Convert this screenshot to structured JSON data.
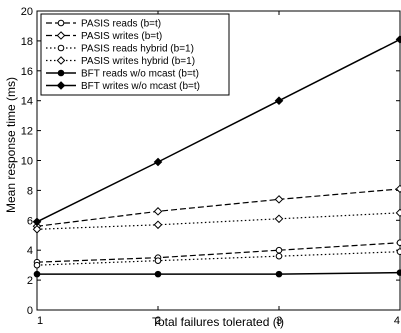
{
  "chart_data": {
    "type": "line",
    "title": "",
    "xlabel": "Total failures tolerated (t)",
    "ylabel": "Mean response time (ms)",
    "xlim": [
      1,
      4
    ],
    "ylim": [
      0,
      20
    ],
    "xticks": [
      "1",
      "2",
      "3",
      "4"
    ],
    "yticks": [
      "0",
      "2",
      "4",
      "6",
      "8",
      "10",
      "12",
      "14",
      "16",
      "18",
      "20"
    ],
    "grid": false,
    "legend_position": "top-left",
    "x": [
      1,
      2,
      3,
      4
    ],
    "series": [
      {
        "name": "PASIS reads (b=t)",
        "values": [
          3.2,
          3.5,
          4.0,
          4.5
        ],
        "line": "dashed",
        "marker": "circle"
      },
      {
        "name": "PASIS writes (b=t)",
        "values": [
          5.6,
          6.6,
          7.4,
          8.1
        ],
        "line": "dashed",
        "marker": "diamond"
      },
      {
        "name": "PASIS reads hybrid (b=1)",
        "values": [
          3.0,
          3.3,
          3.6,
          3.9
        ],
        "line": "dotted",
        "marker": "circle"
      },
      {
        "name": "PASIS writes hybrid (b=1)",
        "values": [
          5.4,
          5.7,
          6.1,
          6.5
        ],
        "line": "dotted",
        "marker": "diamond"
      },
      {
        "name": "BFT reads w/o mcast (b=t)",
        "values": [
          2.4,
          2.4,
          2.4,
          2.5
        ],
        "line": "solid",
        "marker": "circle"
      },
      {
        "name": "BFT writes w/o mcast (b=t)",
        "values": [
          5.9,
          9.9,
          14.0,
          18.1
        ],
        "line": "solid",
        "marker": "diamond"
      }
    ]
  }
}
